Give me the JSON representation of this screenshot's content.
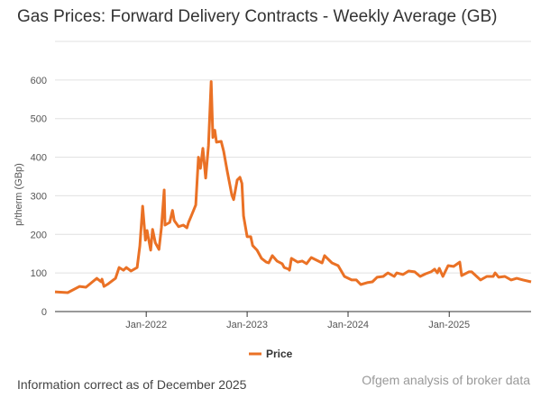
{
  "title": "Gas Prices: Forward Delivery Contracts - Weekly Average (GB)",
  "footer_note": "Information correct as of December 2025",
  "source": "Ofgem analysis of broker data",
  "chart_data": {
    "type": "line",
    "title": "Gas Prices: Forward Delivery Contracts - Weekly Average (GB)",
    "ylabel": "p/therm (GBp)",
    "xlabel": "",
    "ylim": [
      0,
      700
    ],
    "yticks": [
      0,
      100,
      200,
      300,
      400,
      500,
      600
    ],
    "xlim": [
      "2021-02-05",
      "2025-10-24"
    ],
    "xticks": [
      {
        "date": "2022-01-01",
        "label": "Jan-2022"
      },
      {
        "date": "2023-01-01",
        "label": "Jan-2023"
      },
      {
        "date": "2024-01-01",
        "label": "Jan-2024"
      },
      {
        "date": "2025-01-01",
        "label": "Jan-2025"
      }
    ],
    "grid": true,
    "legend_position": "bottom",
    "colors": {
      "line": "#ea7125",
      "grid": "#e0e0e0",
      "axis": "#333333"
    },
    "series": [
      {
        "name": "Price",
        "points": [
          [
            "2021-02-05",
            51
          ],
          [
            "2021-03-23",
            49
          ],
          [
            "2021-05-05",
            65
          ],
          [
            "2021-05-28",
            63
          ],
          [
            "2021-07-06",
            86
          ],
          [
            "2021-07-22",
            77
          ],
          [
            "2021-07-25",
            84
          ],
          [
            "2021-08-01",
            65
          ],
          [
            "2021-08-17",
            72
          ],
          [
            "2021-09-12",
            86
          ],
          [
            "2021-09-25",
            114
          ],
          [
            "2021-10-11",
            107
          ],
          [
            "2021-10-21",
            114
          ],
          [
            "2021-11-07",
            105
          ],
          [
            "2021-11-29",
            114
          ],
          [
            "2021-12-09",
            170
          ],
          [
            "2021-12-19",
            273
          ],
          [
            "2021-12-29",
            185
          ],
          [
            "2022-01-04",
            210
          ],
          [
            "2022-01-17",
            159
          ],
          [
            "2022-01-24",
            213
          ],
          [
            "2022-02-03",
            178
          ],
          [
            "2022-02-16",
            161
          ],
          [
            "2022-02-25",
            217
          ],
          [
            "2022-03-07",
            315
          ],
          [
            "2022-03-10",
            224
          ],
          [
            "2022-03-27",
            231
          ],
          [
            "2022-04-06",
            262
          ],
          [
            "2022-04-12",
            236
          ],
          [
            "2022-04-28",
            220
          ],
          [
            "2022-05-15",
            224
          ],
          [
            "2022-05-28",
            217
          ],
          [
            "2022-06-03",
            231
          ],
          [
            "2022-06-13",
            248
          ],
          [
            "2022-06-29",
            276
          ],
          [
            "2022-07-09",
            400
          ],
          [
            "2022-07-16",
            371
          ],
          [
            "2022-07-25",
            423
          ],
          [
            "2022-08-04",
            346
          ],
          [
            "2022-08-14",
            430
          ],
          [
            "2022-08-24",
            596
          ],
          [
            "2022-08-30",
            451
          ],
          [
            "2022-09-06",
            470
          ],
          [
            "2022-09-12",
            439
          ],
          [
            "2022-09-29",
            441
          ],
          [
            "2022-10-08",
            416
          ],
          [
            "2022-10-21",
            364
          ],
          [
            "2022-11-07",
            301
          ],
          [
            "2022-11-13",
            290
          ],
          [
            "2022-11-26",
            341
          ],
          [
            "2022-12-06",
            348
          ],
          [
            "2022-12-13",
            332
          ],
          [
            "2022-12-19",
            248
          ],
          [
            "2023-01-01",
            194
          ],
          [
            "2023-01-14",
            194
          ],
          [
            "2023-01-21",
            171
          ],
          [
            "2023-02-06",
            159
          ],
          [
            "2023-02-22",
            138
          ],
          [
            "2023-03-11",
            128
          ],
          [
            "2023-03-20",
            126
          ],
          [
            "2023-04-02",
            145
          ],
          [
            "2023-04-19",
            131
          ],
          [
            "2023-05-08",
            124
          ],
          [
            "2023-05-15",
            114
          ],
          [
            "2023-05-31",
            110
          ],
          [
            "2023-06-03",
            107
          ],
          [
            "2023-06-10",
            138
          ],
          [
            "2023-07-03",
            128
          ],
          [
            "2023-07-19",
            131
          ],
          [
            "2023-08-04",
            124
          ],
          [
            "2023-08-21",
            140
          ],
          [
            "2023-09-29",
            126
          ],
          [
            "2023-10-08",
            145
          ],
          [
            "2023-10-18",
            138
          ],
          [
            "2023-11-04",
            126
          ],
          [
            "2023-11-26",
            119
          ],
          [
            "2023-12-19",
            91
          ],
          [
            "2024-01-14",
            82
          ],
          [
            "2024-01-31",
            82
          ],
          [
            "2024-02-16",
            70
          ],
          [
            "2024-03-10",
            75
          ],
          [
            "2024-03-29",
            77
          ],
          [
            "2024-04-15",
            89
          ],
          [
            "2024-05-07",
            91
          ],
          [
            "2024-05-24",
            100
          ],
          [
            "2024-06-16",
            91
          ],
          [
            "2024-06-25",
            100
          ],
          [
            "2024-07-18",
            96
          ],
          [
            "2024-08-07",
            105
          ],
          [
            "2024-08-29",
            103
          ],
          [
            "2024-09-18",
            91
          ],
          [
            "2024-10-08",
            98
          ],
          [
            "2024-10-27",
            103
          ],
          [
            "2024-11-09",
            110
          ],
          [
            "2024-11-19",
            100
          ],
          [
            "2024-11-26",
            112
          ],
          [
            "2024-12-09",
            91
          ],
          [
            "2024-12-28",
            119
          ],
          [
            "2025-01-17",
            117
          ],
          [
            "2025-02-08",
            128
          ],
          [
            "2025-02-15",
            93
          ],
          [
            "2025-03-13",
            103
          ],
          [
            "2025-03-23",
            103
          ],
          [
            "2025-04-24",
            82
          ],
          [
            "2025-05-17",
            91
          ],
          [
            "2025-06-09",
            91
          ],
          [
            "2025-06-16",
            100
          ],
          [
            "2025-06-29",
            89
          ],
          [
            "2025-07-21",
            91
          ],
          [
            "2025-08-13",
            82
          ],
          [
            "2025-09-02",
            86
          ],
          [
            "2025-09-25",
            82
          ],
          [
            "2025-10-24",
            77
          ]
        ]
      }
    ]
  }
}
